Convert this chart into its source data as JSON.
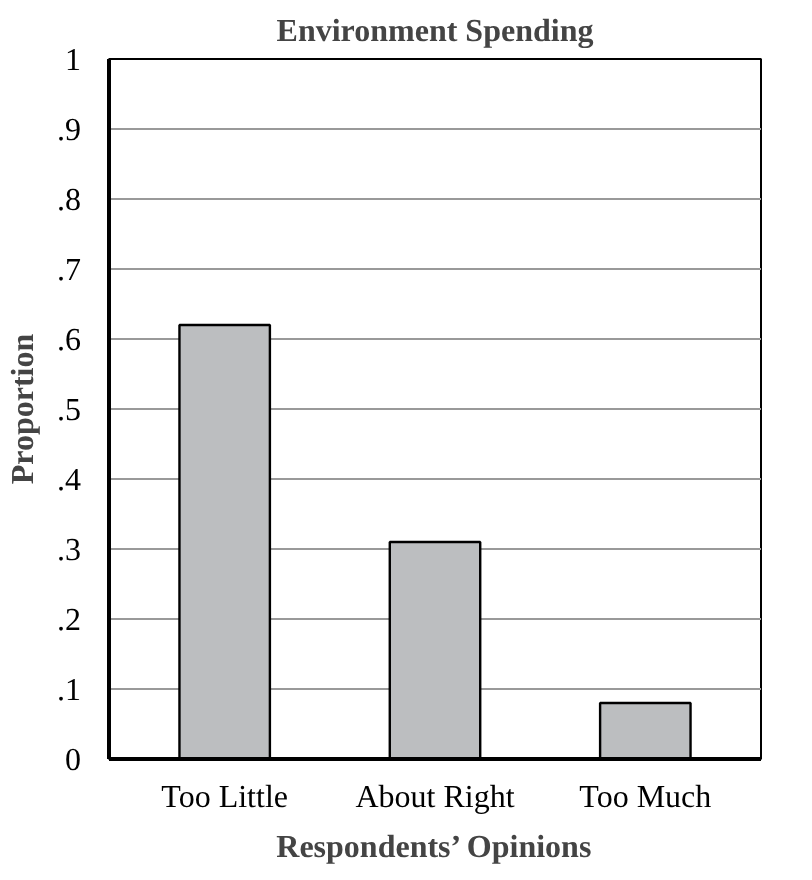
{
  "chart_data": {
    "type": "bar",
    "title": "Environment Spending",
    "xlabel": "Respondents’ Opinions",
    "ylabel": "Proportion",
    "categories": [
      "Too Little",
      "About Right",
      "Too Much"
    ],
    "values": [
      0.62,
      0.31,
      0.08
    ],
    "color": "#bcbec0",
    "ylim": [
      0,
      1
    ],
    "yticks": [
      {
        "value": 0,
        "label": "0"
      },
      {
        "value": 0.1,
        "label": ".1"
      },
      {
        "value": 0.2,
        "label": ".2"
      },
      {
        "value": 0.3,
        "label": ".3"
      },
      {
        "value": 0.4,
        "label": ".4"
      },
      {
        "value": 0.5,
        "label": ".5"
      },
      {
        "value": 0.6,
        "label": ".6"
      },
      {
        "value": 0.7,
        "label": ".7"
      },
      {
        "value": 0.8,
        "label": ".8"
      },
      {
        "value": 0.9,
        "label": ".9"
      },
      {
        "value": 1,
        "label": "1"
      }
    ],
    "grid": "y"
  }
}
